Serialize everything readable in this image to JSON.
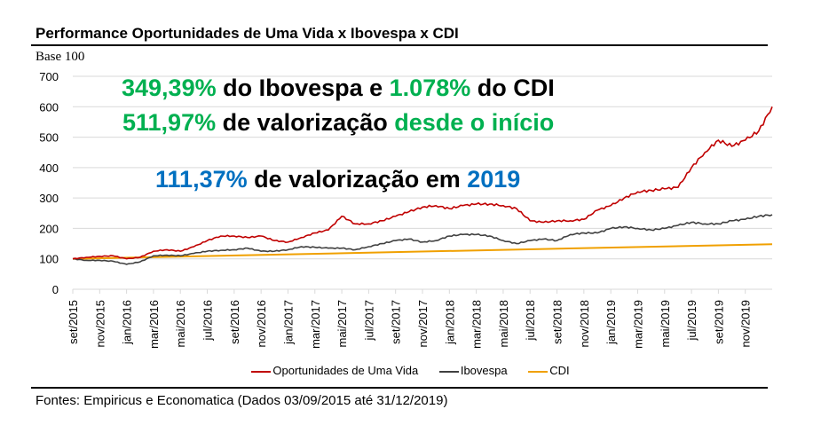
{
  "title": "Performance Oportunidades de Uma Vida x Ibovespa x CDI",
  "source": "Fontes: Empiricus e Economatica (Dados 03/09/2015 até 31/12/2019)",
  "callouts": {
    "line1": {
      "a": "349,39%",
      "b": " do Ibovespa e ",
      "c": "1.078%",
      "d": " do CDI"
    },
    "line2": {
      "a": "511,97%",
      "b": " de valorização ",
      "c": "desde o início"
    },
    "line3": {
      "a": "111,37%",
      "b": " de valorização em ",
      "c": "2019"
    }
  },
  "chart_data": {
    "type": "line",
    "title": "Performance Oportunidades de Uma Vida x Ibovespa x CDI",
    "ylabel": "Base 100",
    "ylim": [
      0,
      700
    ],
    "yticks": [
      0,
      100,
      200,
      300,
      400,
      500,
      600,
      700
    ],
    "x_unit": "months since set/2015",
    "xlim": [
      0,
      52
    ],
    "xtick_labels": [
      "set/2015",
      "nov/2015",
      "jan/2016",
      "mar/2016",
      "mai/2016",
      "jul/2016",
      "set/2016",
      "nov/2016",
      "jan/2017",
      "mar/2017",
      "mai/2017",
      "jul/2017",
      "set/2017",
      "nov/2017",
      "jan/2018",
      "mar/2018",
      "mai/2018",
      "jul/2018",
      "set/2018",
      "nov/2018",
      "jan/2019",
      "mar/2019",
      "mai/2019",
      "jul/2019",
      "set/2019",
      "nov/2019"
    ],
    "grid": true,
    "legend": "bottom",
    "series": [
      {
        "name": "Oportunidades de Uma Vida",
        "color": "#c00000",
        "values": [
          100,
          105,
          108,
          110,
          100,
          105,
          125,
          130,
          125,
          140,
          160,
          175,
          175,
          170,
          175,
          160,
          155,
          170,
          185,
          195,
          240,
          215,
          215,
          225,
          240,
          255,
          270,
          275,
          265,
          275,
          280,
          280,
          275,
          265,
          225,
          220,
          225,
          225,
          230,
          260,
          275,
          300,
          320,
          325,
          330,
          335,
          400,
          450,
          490,
          470,
          490,
          520,
          600
        ]
      },
      {
        "name": "Ibovespa",
        "color": "#404040",
        "values": [
          100,
          95,
          95,
          92,
          82,
          90,
          110,
          112,
          110,
          118,
          125,
          128,
          130,
          135,
          125,
          125,
          130,
          140,
          138,
          135,
          135,
          130,
          140,
          150,
          160,
          165,
          155,
          160,
          175,
          180,
          180,
          175,
          160,
          150,
          160,
          165,
          160,
          180,
          185,
          185,
          200,
          205,
          200,
          195,
          200,
          210,
          220,
          215,
          215,
          225,
          230,
          240,
          245
        ]
      },
      {
        "name": "CDI",
        "color": "#f0a000",
        "x": [
          0,
          52
        ],
        "values": [
          100,
          148
        ]
      }
    ]
  }
}
